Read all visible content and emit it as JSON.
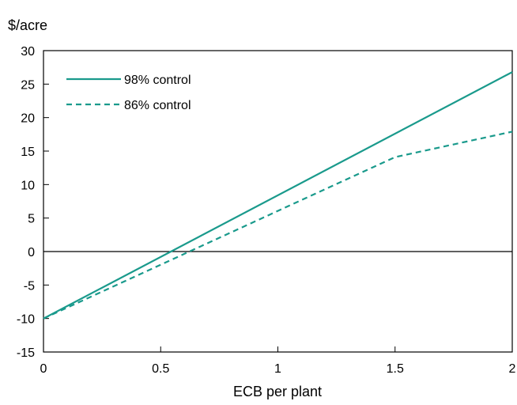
{
  "chart_data": {
    "type": "line",
    "ylabel": "$/acre",
    "xlabel": "ECB per plant",
    "xlim": [
      0,
      2
    ],
    "ylim": [
      -15,
      30
    ],
    "x_ticks": [
      "0",
      "0.5",
      "1",
      "1.5",
      "2"
    ],
    "y_ticks": [
      "30",
      "25",
      "20",
      "15",
      "10",
      "5",
      "0",
      "-5",
      "-10",
      "-15"
    ],
    "zero_line": true,
    "grid": false,
    "legend_position": "top-left",
    "colors": {
      "series": "#1a9a8c",
      "axis": "#000000"
    },
    "series": [
      {
        "name": "98% control",
        "style": "solid",
        "x": [
          0,
          2
        ],
        "y": [
          -10,
          26.8
        ]
      },
      {
        "name": "86% control",
        "style": "dashed",
        "x": [
          0,
          1.5,
          2
        ],
        "y": [
          -10,
          14.1,
          17.9
        ]
      }
    ]
  }
}
